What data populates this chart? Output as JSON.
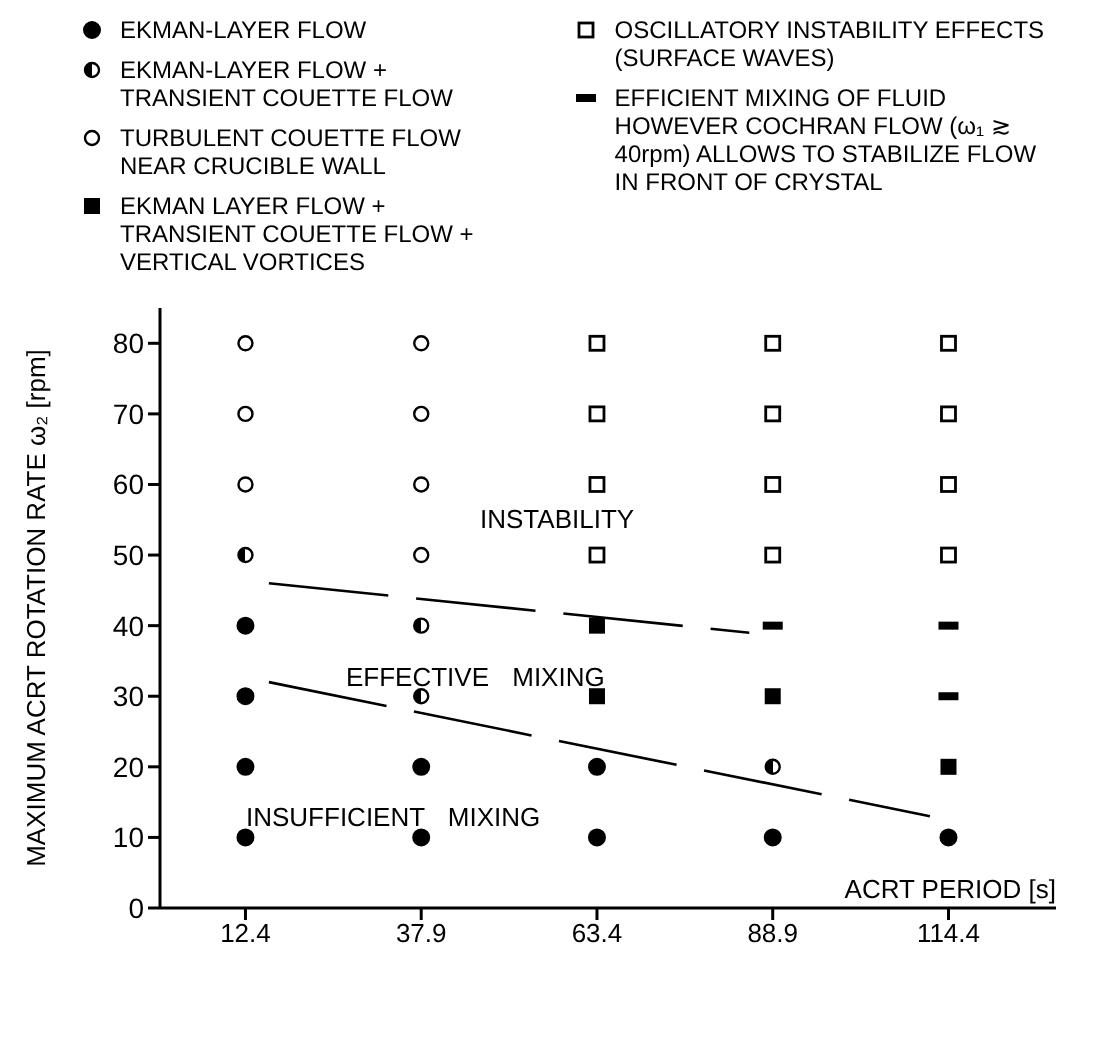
{
  "chart_data": {
    "type": "scatter",
    "xlabel": "ACRT PERIOD [s]",
    "ylabel": "MAXIMUM  ACRT  ROTATION RATE  ω₂ [rpm]",
    "xlim": [
      0,
      130
    ],
    "xticks": [
      12.4,
      37.9,
      63.4,
      88.9,
      114.4
    ],
    "ylim": [
      0,
      85
    ],
    "yticks": [
      0,
      10,
      20,
      30,
      40,
      50,
      60,
      70,
      80
    ],
    "legend": "top",
    "annotations": [
      "INSTABILITY",
      "EFFECTIVE MIXING",
      "INSUFFICIENT MIXING"
    ],
    "series": [
      {
        "name": "EKMAN-LAYER FLOW",
        "color": "#000000",
        "marker": "circle",
        "x": [
          12.4,
          12.4,
          12.4,
          12.4,
          37.9,
          37.9,
          63.4,
          63.4,
          88.9,
          114.4
        ],
        "values": [
          10,
          20,
          30,
          40,
          10,
          20,
          10,
          20,
          10,
          10
        ]
      },
      {
        "name": "EKMAN-LAYER FLOW + TRANSIENT COUETTE FLOW",
        "color": "#000000",
        "marker": "circle",
        "x": [
          12.4,
          37.9,
          37.9,
          88.9
        ],
        "values": [
          50,
          40,
          30,
          20
        ]
      },
      {
        "name": "TURBULENT COUETTE FLOW NEAR CRUCIBLE WALL",
        "color": "#000000",
        "marker": "circle",
        "x": [
          12.4,
          12.4,
          12.4,
          37.9,
          37.9,
          37.9,
          37.9
        ],
        "values": [
          60,
          70,
          80,
          50,
          60,
          70,
          80
        ]
      },
      {
        "name": "EKMAN LAYER FLOW + TRANSIENT COUETTE FLOW + VERTICAL VORTICES",
        "color": "#000000",
        "marker": "square",
        "x": [
          63.4,
          63.4,
          88.9,
          114.4
        ],
        "values": [
          30,
          40,
          30,
          20
        ]
      },
      {
        "name": "OSCILLATORY INSTABILITY EFFECTS (SURFACE WAVES)",
        "color": "#000000",
        "marker": "square",
        "x": [
          63.4,
          63.4,
          63.4,
          63.4,
          88.9,
          88.9,
          88.9,
          88.9,
          114.4,
          114.4,
          114.4,
          114.4
        ],
        "values": [
          50,
          60,
          70,
          80,
          50,
          60,
          70,
          80,
          50,
          60,
          70,
          80
        ]
      },
      {
        "name": "EFFICIENT MIXING OF FLUID HOWEVER COCHRAN FLOW (ω₁ ≳ 40rpm) ALLOWS TO STABILIZE FLOW IN FRONT OF CRYSTAL",
        "color": "#000000",
        "marker": "square",
        "x": [
          88.9,
          114.4,
          114.4
        ],
        "values": [
          40,
          30,
          40
        ]
      },
      {
        "type": "line",
        "color": "#000000",
        "line_style": "dashed",
        "marker": "none",
        "x": [
          15.8,
          85.5
        ],
        "values": [
          46,
          39
        ]
      },
      {
        "type": "line",
        "color": "#000000",
        "line_style": "dashed",
        "marker": "none",
        "x": [
          15.8,
          111.7
        ],
        "values": [
          32,
          13
        ]
      }
    ]
  }
}
